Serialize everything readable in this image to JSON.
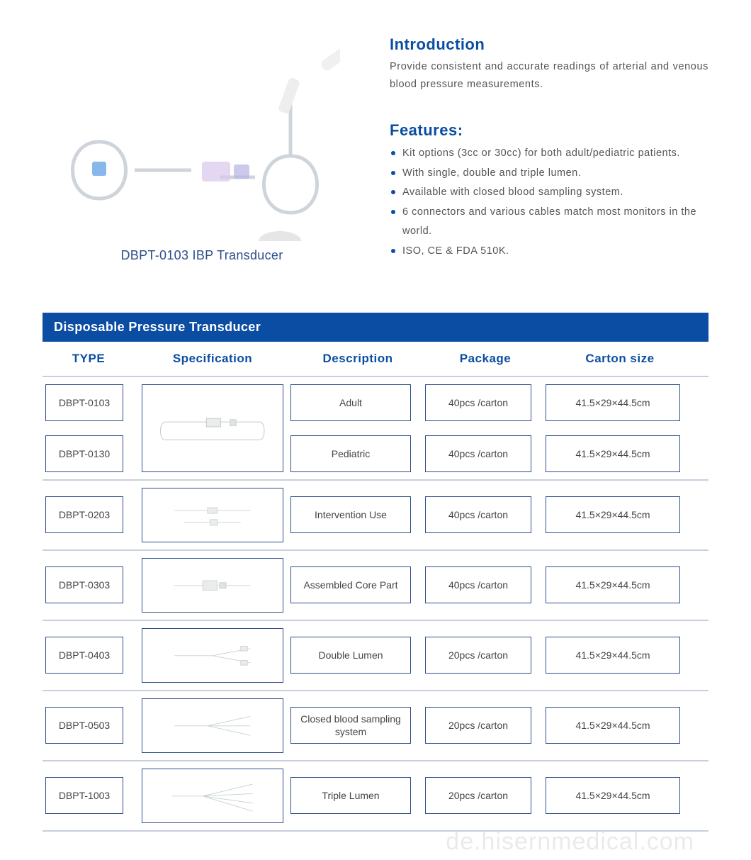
{
  "colors": {
    "primary": "#0b4da2",
    "accent": "#2e4e8a",
    "border": "#c7cfde",
    "text": "#555555",
    "bg": "#ffffff"
  },
  "product": {
    "caption": "DBPT-0103 IBP Transducer"
  },
  "introduction": {
    "heading": "Introduction",
    "text": "Provide consistent and accurate readings of arterial and venous blood pressure measurements."
  },
  "features": {
    "heading": "Features:",
    "items": [
      "Kit options (3cc or 30cc) for both adult/pediatric patients.",
      "With single, double and triple lumen.",
      "Available with closed blood sampling system.",
      "6 connectors and various cables match most monitors in the world.",
      "ISO, CE & FDA 510K."
    ]
  },
  "table": {
    "title": "Disposable Pressure Transducer",
    "columns": [
      "TYPE",
      "Specification",
      "Description",
      "Package",
      "Carton  size"
    ],
    "rows": [
      {
        "merged_spec": true,
        "items": [
          {
            "type": "DBPT-0103",
            "desc": "Adult",
            "pkg": "40pcs /carton",
            "carton": "41.5×29×44.5cm"
          },
          {
            "type": "DBPT-0130",
            "desc": "Pediatric",
            "pkg": "40pcs /carton",
            "carton": "41.5×29×44.5cm"
          }
        ]
      },
      {
        "items": [
          {
            "type": "DBPT-0203",
            "desc": "Intervention Use",
            "pkg": "40pcs /carton",
            "carton": "41.5×29×44.5cm"
          }
        ]
      },
      {
        "items": [
          {
            "type": "DBPT-0303",
            "desc": "Assembled Core Part",
            "pkg": "40pcs /carton",
            "carton": "41.5×29×44.5cm"
          }
        ]
      },
      {
        "items": [
          {
            "type": "DBPT-0403",
            "desc": "Double Lumen",
            "pkg": "20pcs /carton",
            "carton": "41.5×29×44.5cm"
          }
        ]
      },
      {
        "items": [
          {
            "type": "DBPT-0503",
            "desc": "Closed blood sampling system",
            "pkg": "20pcs /carton",
            "carton": "41.5×29×44.5cm"
          }
        ]
      },
      {
        "items": [
          {
            "type": "DBPT-1003",
            "desc": "Triple Lumen",
            "pkg": "20pcs /carton",
            "carton": "41.5×29×44.5cm"
          }
        ]
      }
    ]
  },
  "watermark": "de.hisernmedical.com"
}
